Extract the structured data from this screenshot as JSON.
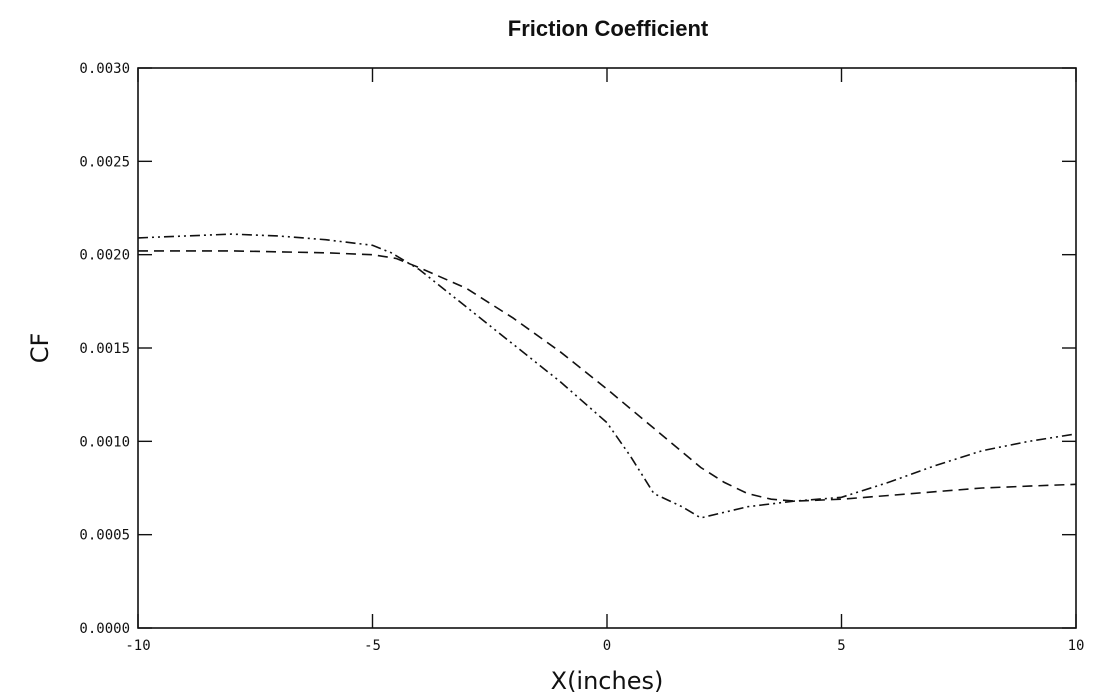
{
  "chart_data": {
    "type": "line",
    "title": "Friction Coefficient",
    "xlabel": "X(inches)",
    "ylabel": "CF",
    "xlim": [
      -10,
      10
    ],
    "ylim": [
      0.0,
      0.003
    ],
    "xticks": [
      -10,
      -5,
      0,
      5,
      10
    ],
    "xtick_labels": [
      "-10",
      "-5",
      "0",
      "5",
      "10"
    ],
    "yticks": [
      0.0,
      0.0005,
      0.001,
      0.0015,
      0.002,
      0.0025,
      0.003
    ],
    "ytick_labels": [
      "0.0000",
      "0.0005",
      "0.0010",
      "0.0015",
      "0.0020",
      "0.0025",
      "0.0030"
    ],
    "grid": false,
    "series": [
      {
        "line_style": "dashed",
        "color": "#111111",
        "points": [
          [
            -10,
            0.00202
          ],
          [
            -8,
            0.00202
          ],
          [
            -6,
            0.00201
          ],
          [
            -5,
            0.002
          ],
          [
            -4.5,
            0.00198
          ],
          [
            -4,
            0.00193
          ],
          [
            -3,
            0.00182
          ],
          [
            -2,
            0.00166
          ],
          [
            -1,
            0.00148
          ],
          [
            0,
            0.00128
          ],
          [
            1,
            0.00107
          ],
          [
            2,
            0.00086
          ],
          [
            2.5,
            0.00078
          ],
          [
            3,
            0.00072
          ],
          [
            3.5,
            0.00069
          ],
          [
            4,
            0.00068
          ],
          [
            5,
            0.00069
          ],
          [
            6,
            0.00071
          ],
          [
            7,
            0.00073
          ],
          [
            8,
            0.00075
          ],
          [
            9,
            0.00076
          ],
          [
            10,
            0.00077
          ]
        ]
      },
      {
        "line_style": "dash-dot-dot",
        "color": "#111111",
        "points": [
          [
            -10,
            0.00209
          ],
          [
            -9,
            0.0021
          ],
          [
            -8,
            0.00211
          ],
          [
            -7,
            0.0021
          ],
          [
            -6,
            0.00208
          ],
          [
            -5,
            0.00205
          ],
          [
            -4.6,
            0.00201
          ],
          [
            -4,
            0.00192
          ],
          [
            -3,
            0.00172
          ],
          [
            -2,
            0.00152
          ],
          [
            -1,
            0.00132
          ],
          [
            0,
            0.0011
          ],
          [
            0.5,
            0.00092
          ],
          [
            1,
            0.00072
          ],
          [
            1.6,
            0.00065
          ],
          [
            2,
            0.00059
          ],
          [
            3,
            0.00065
          ],
          [
            4,
            0.00068
          ],
          [
            5,
            0.0007
          ],
          [
            6,
            0.00078
          ],
          [
            7,
            0.00087
          ],
          [
            8,
            0.00095
          ],
          [
            9,
            0.001
          ],
          [
            10,
            0.00104
          ]
        ]
      }
    ]
  }
}
